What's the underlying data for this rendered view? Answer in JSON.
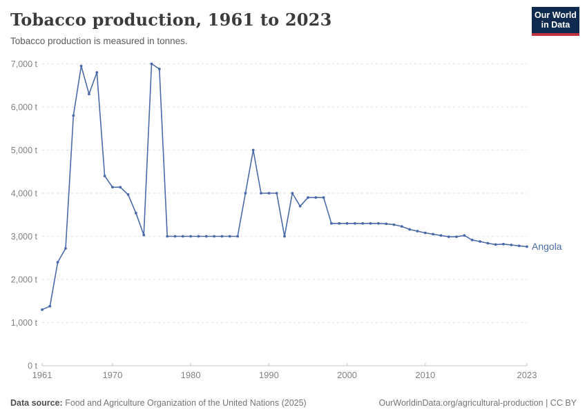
{
  "header": {
    "title": "Tobacco production, 1961 to 2023",
    "subtitle": "Tobacco production is measured in tonnes.",
    "logo": {
      "line1": "Our World",
      "line2": "in Data"
    }
  },
  "footer": {
    "source_label": "Data source:",
    "source_text": " Food and Agriculture Organization of the United Nations (2025)",
    "credit": "OurWorldinData.org/agricultural-production | CC BY"
  },
  "chart_data": {
    "type": "line",
    "title": "Tobacco production, 1961 to 2023",
    "unit": "tonnes",
    "xlabel": "",
    "ylabel": "",
    "xlim": [
      1961,
      2023
    ],
    "ylim": [
      0,
      7000
    ],
    "grid": "horizontal-dashed",
    "legend_position": "end-of-line-label",
    "yticks": [
      {
        "value": 0,
        "label": "0 t"
      },
      {
        "value": 1000,
        "label": "1,000 t"
      },
      {
        "value": 2000,
        "label": "2,000 t"
      },
      {
        "value": 3000,
        "label": "3,000 t"
      },
      {
        "value": 4000,
        "label": "4,000 t"
      },
      {
        "value": 5000,
        "label": "5,000 t"
      },
      {
        "value": 6000,
        "label": "6,000 t"
      },
      {
        "value": 7000,
        "label": "7,000 t"
      }
    ],
    "xticks": [
      {
        "value": 1961,
        "label": "1961"
      },
      {
        "value": 1970,
        "label": "1970"
      },
      {
        "value": 1980,
        "label": "1980"
      },
      {
        "value": 1990,
        "label": "1990"
      },
      {
        "value": 2000,
        "label": "2000"
      },
      {
        "value": 2010,
        "label": "2010"
      },
      {
        "value": 2023,
        "label": "2023"
      }
    ],
    "x": [
      1961,
      1962,
      1963,
      1964,
      1965,
      1966,
      1967,
      1968,
      1969,
      1970,
      1971,
      1972,
      1973,
      1974,
      1975,
      1976,
      1977,
      1978,
      1979,
      1980,
      1981,
      1982,
      1983,
      1984,
      1985,
      1986,
      1987,
      1988,
      1989,
      1990,
      1991,
      1992,
      1993,
      1994,
      1995,
      1996,
      1997,
      1998,
      1999,
      2000,
      2001,
      2002,
      2003,
      2004,
      2005,
      2006,
      2007,
      2008,
      2009,
      2010,
      2011,
      2012,
      2013,
      2014,
      2015,
      2016,
      2017,
      2018,
      2019,
      2020,
      2021,
      2022,
      2023
    ],
    "series": [
      {
        "name": "Angola",
        "color": "#4a69a8",
        "values": [
          1300,
          1380,
          2400,
          2720,
          5800,
          6950,
          6300,
          6800,
          4400,
          4140,
          4140,
          3970,
          3540,
          3030,
          7000,
          6880,
          3000,
          3000,
          3000,
          3000,
          3000,
          3000,
          3000,
          3000,
          3000,
          3000,
          4000,
          5000,
          4000,
          4000,
          4000,
          3000,
          4000,
          3700,
          3900,
          3900,
          3900,
          3300,
          3300,
          3300,
          3300,
          3300,
          3300,
          3300,
          3290,
          3270,
          3230,
          3160,
          3120,
          3080,
          3050,
          3020,
          2990,
          2990,
          3020,
          2915,
          2880,
          2840,
          2810,
          2820,
          2800,
          2780,
          2760
        ]
      }
    ],
    "colors": {
      "line": "#4a69a8",
      "grid": "#dedede",
      "axis": "#c4c4c4",
      "tick_label": "#828282"
    }
  }
}
